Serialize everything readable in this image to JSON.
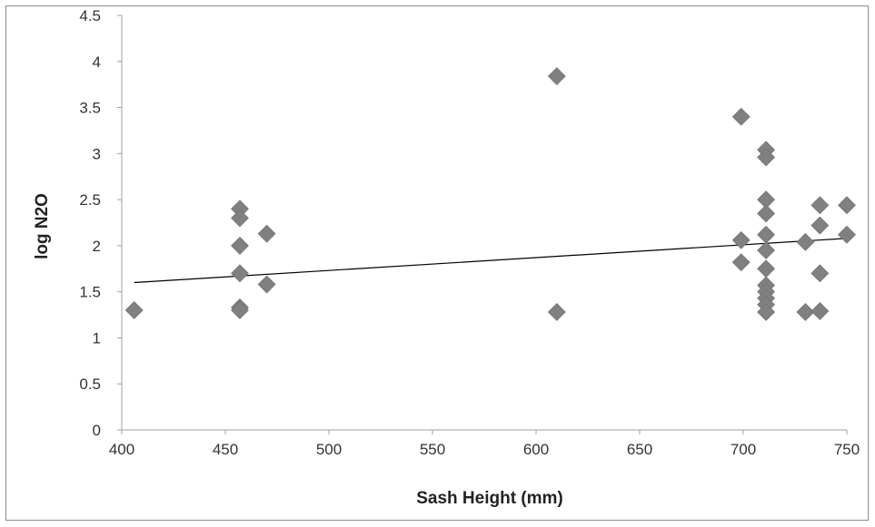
{
  "chart_data": {
    "type": "scatter",
    "title": "",
    "xlabel": "Sash Height (mm)",
    "ylabel": "log N2O",
    "xlim": [
      400,
      750
    ],
    "ylim": [
      0,
      4.5
    ],
    "x_ticks": [
      "400",
      "450",
      "500",
      "550",
      "600",
      "650",
      "700",
      "750"
    ],
    "y_ticks": [
      "0",
      "0.5",
      "1",
      "1.5",
      "2",
      "2.5",
      "3",
      "3.5",
      "4",
      "4.5"
    ],
    "grid": false,
    "legend": "none",
    "marker": "diamond",
    "marker_color": "#808080",
    "trendline": {
      "type": "linear",
      "x": [
        406,
        750
      ],
      "y": [
        1.6,
        2.08
      ],
      "color": "#000000"
    },
    "points": [
      {
        "x": 406,
        "y": 1.3
      },
      {
        "x": 457,
        "y": 2.4
      },
      {
        "x": 457,
        "y": 2.3
      },
      {
        "x": 457,
        "y": 2.0
      },
      {
        "x": 457,
        "y": 1.7
      },
      {
        "x": 457,
        "y": 1.33
      },
      {
        "x": 457,
        "y": 1.3
      },
      {
        "x": 470,
        "y": 2.13
      },
      {
        "x": 470,
        "y": 1.58
      },
      {
        "x": 610,
        "y": 3.84
      },
      {
        "x": 610,
        "y": 1.28
      },
      {
        "x": 699,
        "y": 3.4
      },
      {
        "x": 699,
        "y": 2.06
      },
      {
        "x": 699,
        "y": 1.82
      },
      {
        "x": 711,
        "y": 3.04
      },
      {
        "x": 711,
        "y": 2.96
      },
      {
        "x": 711,
        "y": 2.5
      },
      {
        "x": 711,
        "y": 2.35
      },
      {
        "x": 711,
        "y": 2.12
      },
      {
        "x": 711,
        "y": 1.95
      },
      {
        "x": 711,
        "y": 1.75
      },
      {
        "x": 711,
        "y": 1.57
      },
      {
        "x": 711,
        "y": 1.5
      },
      {
        "x": 711,
        "y": 1.43
      },
      {
        "x": 711,
        "y": 1.36
      },
      {
        "x": 711,
        "y": 1.28
      },
      {
        "x": 730,
        "y": 2.04
      },
      {
        "x": 730,
        "y": 1.28
      },
      {
        "x": 737,
        "y": 2.44
      },
      {
        "x": 737,
        "y": 2.22
      },
      {
        "x": 737,
        "y": 1.7
      },
      {
        "x": 737,
        "y": 1.29
      },
      {
        "x": 750,
        "y": 2.44
      },
      {
        "x": 750,
        "y": 2.12
      }
    ]
  }
}
